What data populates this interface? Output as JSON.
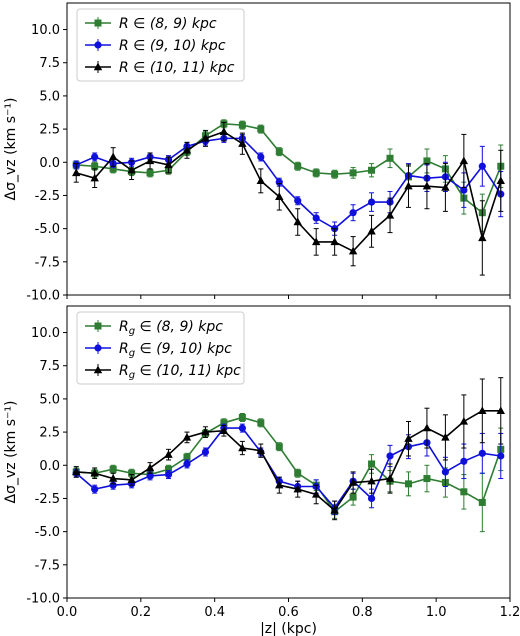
{
  "chart_data": [
    {
      "type": "line",
      "title": "",
      "xlabel": "",
      "ylabel": "Δσ_vz (km s⁻¹)",
      "xlim": [
        0.0,
        1.2
      ],
      "ylim": [
        -10.0,
        12.0
      ],
      "xticks": [
        0.0,
        0.2,
        0.4,
        0.6,
        0.8,
        1.0,
        1.2
      ],
      "yticks": [
        -10.0,
        -7.5,
        -5.0,
        -2.5,
        0.0,
        2.5,
        5.0,
        7.5,
        10.0
      ],
      "show_xtick_labels": false,
      "grid": false,
      "legend_position": "top-left",
      "x": [
        0.025,
        0.075,
        0.125,
        0.175,
        0.225,
        0.275,
        0.325,
        0.375,
        0.425,
        0.475,
        0.525,
        0.575,
        0.625,
        0.675,
        0.725,
        0.775,
        0.825,
        0.875,
        0.925,
        0.975,
        1.025,
        1.075,
        1.125,
        1.175
      ],
      "series": [
        {
          "name": "R ∈ (8, 9) kpc",
          "legend_prefix": "R",
          "legend_rest": " ∈ (8, 9) kpc",
          "color": "#2e7d32",
          "marker": "square",
          "values": [
            -0.2,
            -0.3,
            -0.5,
            -0.7,
            -0.8,
            -0.6,
            0.8,
            2.0,
            2.9,
            2.8,
            2.5,
            0.8,
            -0.3,
            -0.8,
            -0.9,
            -0.8,
            -0.6,
            0.3,
            -1.1,
            0.1,
            -0.5,
            -2.7,
            -3.8,
            -0.3
          ],
          "errors": [
            0.3,
            0.3,
            0.3,
            0.3,
            0.3,
            0.3,
            0.3,
            0.3,
            0.3,
            0.3,
            0.3,
            0.3,
            0.3,
            0.3,
            0.3,
            0.4,
            0.5,
            0.7,
            0.8,
            0.9,
            1.0,
            1.2,
            1.4,
            1.6
          ]
        },
        {
          "name": "R ∈ (9, 10) kpc",
          "legend_prefix": "R",
          "legend_rest": " ∈ (9, 10) kpc",
          "color": "#1010dd",
          "marker": "circle",
          "values": [
            -0.2,
            0.4,
            -0.1,
            0.0,
            0.4,
            0.2,
            1.2,
            1.6,
            1.8,
            1.8,
            0.4,
            -1.5,
            -2.9,
            -4.2,
            -5.0,
            -3.8,
            -3.0,
            -3.0,
            -1.0,
            -1.2,
            -1.1,
            -2.1,
            -0.3,
            -2.4
          ],
          "errors": [
            0.3,
            0.3,
            0.3,
            0.3,
            0.3,
            0.3,
            0.3,
            0.3,
            0.3,
            0.3,
            0.3,
            0.3,
            0.3,
            0.4,
            0.5,
            0.6,
            0.7,
            0.8,
            0.9,
            1.0,
            1.1,
            1.3,
            1.5,
            1.7
          ]
        },
        {
          "name": "R ∈ (10, 11) kpc",
          "legend_prefix": "R",
          "legend_rest": " ∈ (10, 11) kpc",
          "color": "#000000",
          "marker": "triangle",
          "values": [
            -0.8,
            -1.2,
            0.4,
            -0.6,
            0.1,
            -0.2,
            0.9,
            1.8,
            2.3,
            1.4,
            -1.4,
            -2.6,
            -4.5,
            -6.0,
            -6.0,
            -6.7,
            -5.2,
            -4.0,
            -1.8,
            -1.8,
            -1.9,
            0.1,
            -5.7,
            -1.4
          ],
          "errors": [
            0.7,
            0.7,
            0.7,
            0.7,
            0.6,
            0.6,
            0.6,
            0.6,
            0.7,
            0.8,
            0.9,
            1.0,
            1.0,
            1.0,
            1.0,
            1.1,
            1.2,
            1.3,
            1.6,
            1.7,
            1.8,
            2.0,
            2.8,
            2.3
          ]
        }
      ]
    },
    {
      "type": "line",
      "title": "",
      "xlabel": "|z| (kpc)",
      "ylabel": "Δσ_vz (km s⁻¹)",
      "xlim": [
        0.0,
        1.2
      ],
      "ylim": [
        -10.0,
        12.0
      ],
      "xticks": [
        0.0,
        0.2,
        0.4,
        0.6,
        0.8,
        1.0,
        1.2
      ],
      "yticks": [
        -10.0,
        -7.5,
        -5.0,
        -2.5,
        0.0,
        2.5,
        5.0,
        7.5,
        10.0
      ],
      "show_xtick_labels": true,
      "grid": false,
      "legend_position": "top-left",
      "x": [
        0.025,
        0.075,
        0.125,
        0.175,
        0.225,
        0.275,
        0.325,
        0.375,
        0.425,
        0.475,
        0.525,
        0.575,
        0.625,
        0.675,
        0.725,
        0.775,
        0.825,
        0.875,
        0.925,
        0.975,
        1.025,
        1.075,
        1.125,
        1.175
      ],
      "series": [
        {
          "name": "Rg ∈ (8, 9) kpc",
          "legend_prefix": "R",
          "legend_sub": "g",
          "legend_rest": " ∈ (8, 9) kpc",
          "color": "#2e7d32",
          "marker": "square",
          "values": [
            -0.5,
            -0.6,
            -0.3,
            -0.6,
            -0.7,
            -0.3,
            0.6,
            2.4,
            3.2,
            3.6,
            3.2,
            1.4,
            -0.6,
            -1.5,
            -3.5,
            -2.4,
            0.1,
            -1.2,
            -1.4,
            -1.0,
            -1.3,
            -2.0,
            -2.8,
            1.2
          ],
          "errors": [
            0.3,
            0.3,
            0.3,
            0.3,
            0.3,
            0.3,
            0.3,
            0.3,
            0.3,
            0.3,
            0.3,
            0.3,
            0.3,
            0.4,
            0.5,
            0.6,
            0.7,
            0.8,
            0.9,
            1.0,
            1.1,
            1.3,
            2.2,
            1.6
          ]
        },
        {
          "name": "Rg ∈ (9, 10) kpc",
          "legend_prefix": "R",
          "legend_sub": "g",
          "legend_rest": " ∈ (9, 10) kpc",
          "color": "#1010dd",
          "marker": "circle",
          "values": [
            -0.6,
            -1.8,
            -1.5,
            -1.4,
            -0.8,
            -0.7,
            0.1,
            1.0,
            2.8,
            2.8,
            1.0,
            -1.2,
            -1.6,
            -1.6,
            -3.2,
            -1.2,
            -2.5,
            0.7,
            1.4,
            1.7,
            -0.5,
            0.3,
            0.9,
            0.7
          ],
          "errors": [
            0.3,
            0.3,
            0.3,
            0.3,
            0.3,
            0.3,
            0.3,
            0.3,
            0.3,
            0.3,
            0.3,
            0.3,
            0.4,
            0.5,
            0.5,
            0.6,
            0.7,
            0.8,
            0.9,
            1.0,
            1.1,
            1.3,
            1.5,
            1.7
          ]
        },
        {
          "name": "Rg ∈ (10, 11) kpc",
          "legend_prefix": "R",
          "legend_sub": "g",
          "legend_rest": " ∈ (10, 11) kpc",
          "color": "#000000",
          "marker": "triangle",
          "values": [
            -0.5,
            -0.6,
            -1.0,
            -1.1,
            -0.2,
            0.8,
            2.1,
            2.5,
            2.6,
            1.3,
            1.1,
            -1.5,
            -1.8,
            -2.2,
            -3.4,
            -1.3,
            -1.2,
            -1.0,
            2.0,
            2.8,
            2.1,
            3.3,
            4.1,
            4.1
          ],
          "errors": [
            0.4,
            0.4,
            0.4,
            0.4,
            0.4,
            0.4,
            0.4,
            0.4,
            0.4,
            0.5,
            0.5,
            0.6,
            0.6,
            0.7,
            0.7,
            0.8,
            0.9,
            1.1,
            1.3,
            1.5,
            1.7,
            2.0,
            2.4,
            2.5
          ]
        }
      ]
    }
  ]
}
